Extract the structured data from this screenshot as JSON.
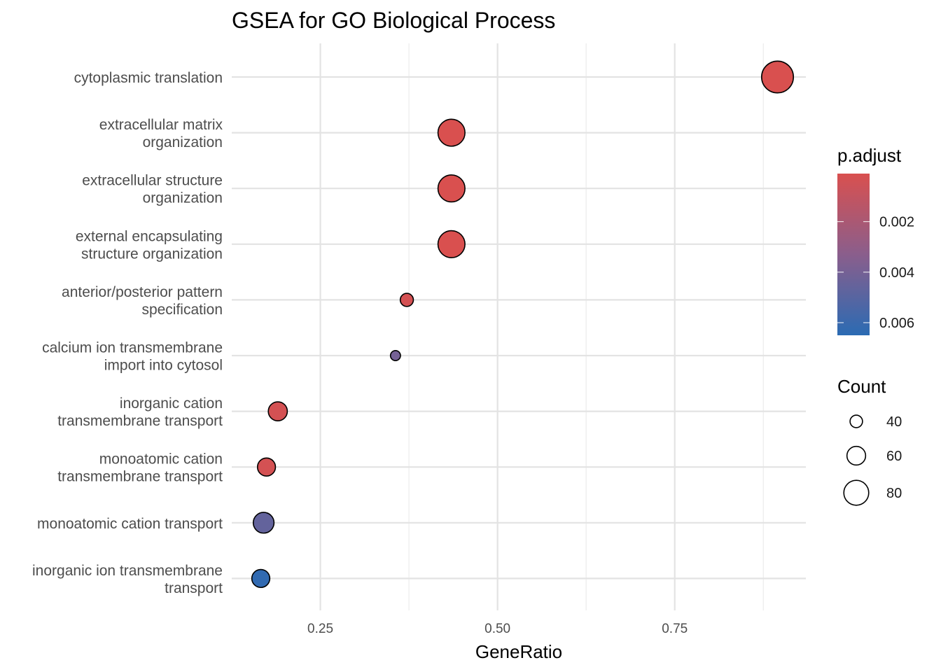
{
  "chart_data": {
    "type": "scatter",
    "title": "GSEA for GO Biological Process",
    "xlabel": "GeneRatio",
    "ylabel": "",
    "xlim": [
      0.125,
      0.935
    ],
    "xticks": [
      0.25,
      0.5,
      0.75
    ],
    "xtick_labels": [
      "0.25",
      "0.50",
      "0.75"
    ],
    "grid": true,
    "categories": [
      [
        "cytoplasmic translation"
      ],
      [
        "extracellular matrix",
        "organization"
      ],
      [
        "extracellular structure",
        "organization"
      ],
      [
        "external encapsulating",
        "structure organization"
      ],
      [
        "anterior/posterior pattern",
        "specification"
      ],
      [
        "calcium ion transmembrane",
        "import into cytosol"
      ],
      [
        "inorganic cation",
        "transmembrane transport"
      ],
      [
        "monoatomic cation",
        "transmembrane transport"
      ],
      [
        "monoatomic cation transport"
      ],
      [
        "inorganic ion transmembrane",
        "transport"
      ]
    ],
    "points": [
      {
        "gene_ratio": 0.895,
        "count": 92,
        "p_adjust": 0.0001
      },
      {
        "gene_ratio": 0.435,
        "count": 78,
        "p_adjust": 0.0001
      },
      {
        "gene_ratio": 0.435,
        "count": 78,
        "p_adjust": 0.0001
      },
      {
        "gene_ratio": 0.435,
        "count": 78,
        "p_adjust": 0.0001
      },
      {
        "gene_ratio": 0.372,
        "count": 38,
        "p_adjust": 0.0003
      },
      {
        "gene_ratio": 0.356,
        "count": 29,
        "p_adjust": 0.004
      },
      {
        "gene_ratio": 0.19,
        "count": 55,
        "p_adjust": 0.0003
      },
      {
        "gene_ratio": 0.174,
        "count": 52,
        "p_adjust": 0.0003
      },
      {
        "gene_ratio": 0.17,
        "count": 60,
        "p_adjust": 0.0046
      },
      {
        "gene_ratio": 0.166,
        "count": 52,
        "p_adjust": 0.0063
      }
    ],
    "color_legend": {
      "title": "p.adjust",
      "breaks": [
        0.002,
        0.004,
        0.006
      ],
      "labels": [
        "0.002",
        "0.004",
        "0.006"
      ],
      "range": [
        0.0001,
        0.0065
      ],
      "low_color": "#d9504f",
      "mid_color": "#8a5e8c",
      "high_color": "#2b6bb3"
    },
    "size_legend": {
      "title": "Count",
      "breaks": [
        40,
        60,
        80
      ],
      "labels": [
        "40",
        "60",
        "80"
      ]
    },
    "legend_position": "right"
  }
}
